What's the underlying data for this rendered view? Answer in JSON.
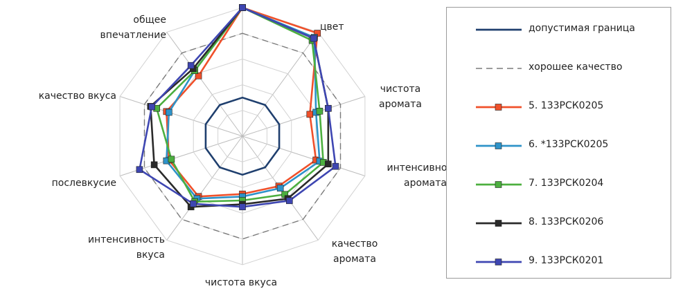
{
  "chart_data": {
    "type": "radar",
    "axes": [
      {
        "lines": [
          ""
        ]
      },
      {
        "lines": [
          "цвет"
        ]
      },
      {
        "lines": [
          "чистота",
          "аромата"
        ]
      },
      {
        "lines": [
          "интенсивность",
          "аромата"
        ]
      },
      {
        "lines": [
          "качество",
          "аромата"
        ]
      },
      {
        "lines": [
          "чистота вкуса"
        ]
      },
      {
        "lines": [
          "интенсивность",
          "вкуса"
        ]
      },
      {
        "lines": [
          "послевкусие"
        ]
      },
      {
        "lines": [
          "качество вкуса"
        ]
      },
      {
        "lines": [
          "общее",
          "впечатление"
        ]
      }
    ],
    "rmax": 10,
    "grid_levels": [
      2,
      4,
      6,
      8,
      10
    ],
    "series": [
      {
        "name": "допустимая граница",
        "color": "#1f3f6e",
        "style": "solid",
        "marker": "none",
        "values": [
          3,
          3,
          3,
          3,
          3,
          3,
          3,
          3,
          3,
          3
        ]
      },
      {
        "name": "хорошее качество",
        "color": "#7a7a7a",
        "style": "dashed",
        "marker": "none",
        "values": [
          8,
          8,
          8,
          8,
          8,
          8,
          8,
          8,
          8,
          8
        ]
      },
      {
        "name": "5. 133РСК0205",
        "color": "#f0502a",
        "style": "solid",
        "marker": "square",
        "values": [
          10,
          9.9,
          5.5,
          6.0,
          4.8,
          4.5,
          5.8,
          6.0,
          6.2,
          5.8
        ]
      },
      {
        "name": "6. *133РСК0205",
        "color": "#2e93c9",
        "style": "solid",
        "marker": "square",
        "values": [
          10,
          9.5,
          6.0,
          6.3,
          5.0,
          4.7,
          6.0,
          6.2,
          6.0,
          6.3
        ]
      },
      {
        "name": "7. 133РСК0204",
        "color": "#4caf3f",
        "style": "solid",
        "marker": "square",
        "values": [
          10,
          9.2,
          6.3,
          6.6,
          5.6,
          5.0,
          6.3,
          5.8,
          7.0,
          6.3
        ]
      },
      {
        "name": "8. 133РСК0206",
        "color": "#2a2a2a",
        "style": "solid",
        "marker": "square",
        "values": [
          10,
          9.4,
          7.0,
          7.0,
          6.0,
          5.3,
          6.8,
          7.2,
          7.5,
          6.5
        ]
      },
      {
        "name": "9. 133РСК0201",
        "color": "#3e46b2",
        "style": "solid",
        "marker": "square",
        "values": [
          10,
          9.4,
          7.0,
          7.6,
          6.2,
          5.5,
          6.5,
          8.4,
          7.4,
          6.8
        ]
      }
    ]
  }
}
